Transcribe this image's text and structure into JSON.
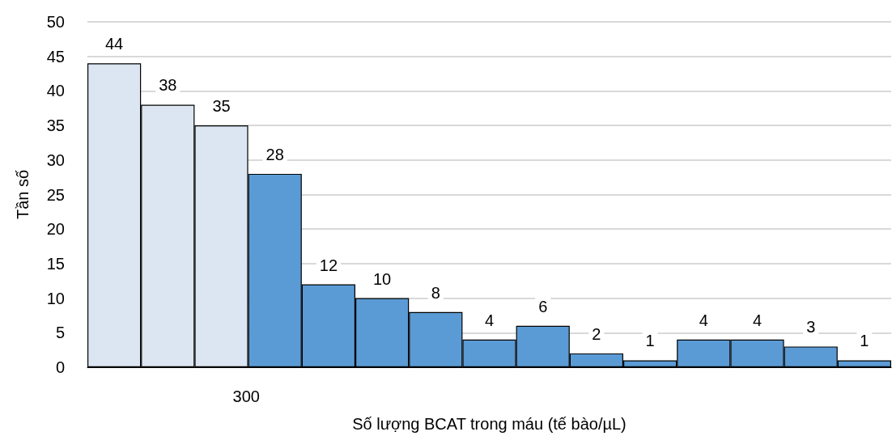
{
  "chart_data": {
    "type": "bar",
    "xlabel": "Số lượng BCAT trong máu (tế bào/µL)",
    "ylabel": "Tần số",
    "categories": [
      null,
      null,
      null,
      null,
      null,
      null,
      null,
      null,
      null,
      null,
      null,
      null,
      null,
      null,
      null
    ],
    "values": [
      44,
      38,
      35,
      28,
      12,
      10,
      8,
      4,
      6,
      2,
      1,
      4,
      4,
      3,
      1
    ],
    "colors": [
      "#dce6f2",
      "#dce6f2",
      "#dce6f2",
      "#5b9bd5",
      "#5b9bd5",
      "#5b9bd5",
      "#5b9bd5",
      "#5b9bd5",
      "#5b9bd5",
      "#5b9bd5",
      "#5b9bd5",
      "#5b9bd5",
      "#5b9bd5",
      "#5b9bd5",
      "#5b9bd5"
    ],
    "ylim": [
      0,
      50
    ],
    "yticks": [
      0,
      5,
      10,
      15,
      20,
      25,
      30,
      35,
      40,
      45,
      50
    ],
    "annotations": [
      "300"
    ],
    "grid": "y",
    "data_labels": true
  }
}
